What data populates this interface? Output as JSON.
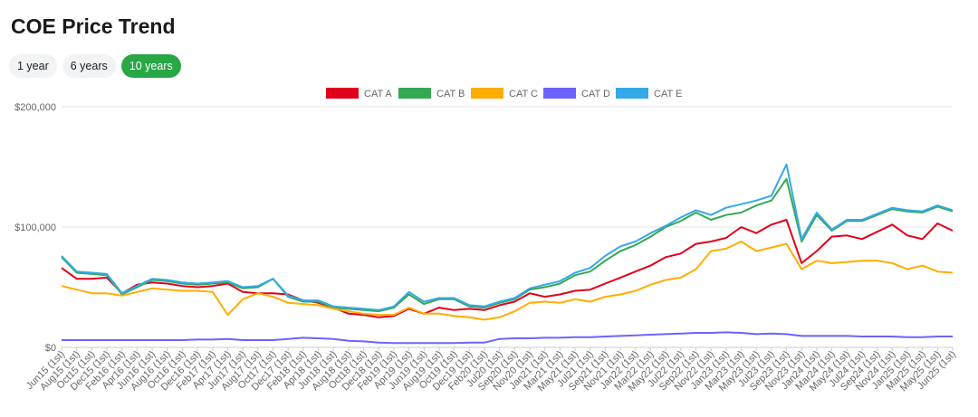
{
  "page": {
    "title": "COE Price Trend"
  },
  "range_buttons": [
    {
      "label": "1 year",
      "active": false
    },
    {
      "label": "6 years",
      "active": false
    },
    {
      "label": "10 years",
      "active": true
    }
  ],
  "chart_data": {
    "type": "line",
    "title": "",
    "xlabel": "",
    "ylabel": "",
    "ylim": [
      0,
      200000
    ],
    "y_ticks": [
      "$0",
      "$100,000",
      "$200,000"
    ],
    "grid": true,
    "legend_position": "top",
    "x": [
      "Jun15 (1st)",
      "Aug15 (1st)",
      "Oct15 (1st)",
      "Dec15 (1st)",
      "Feb16 (1st)",
      "Apr16 (1st)",
      "Jun16 (1st)",
      "Aug16 (1st)",
      "Oct16 (1st)",
      "Dec16 (1st)",
      "Feb17 (1st)",
      "Apr17 (1st)",
      "Jun17 (1st)",
      "Aug17 (1st)",
      "Oct17 (1st)",
      "Dec17 (1st)",
      "Feb18 (1st)",
      "Apr18 (1st)",
      "Jun18 (1st)",
      "Aug18 (1st)",
      "Oct18 (1st)",
      "Dec18 (1st)",
      "Feb19 (1st)",
      "Apr19 (1st)",
      "Jun19 (1st)",
      "Aug19 (1st)",
      "Oct19 (1st)",
      "Dec19 (1st)",
      "Feb20 (1st)",
      "Jul20 (1st)",
      "Sep20 (1st)",
      "Nov20 (1st)",
      "Jan21 (1st)",
      "Mar21 (1st)",
      "May21 (1st)",
      "Jul21 (1st)",
      "Sep21 (1st)",
      "Nov21 (1st)",
      "Jan22 (1st)",
      "Mar22 (1st)",
      "May22 (1st)",
      "Jul22 (1st)",
      "Sep22 (1st)",
      "Nov22 (1st)",
      "Jan23 (1st)",
      "Mar23 (1st)",
      "May23 (1st)",
      "Jul23 (1st)",
      "Sep23 (1st)",
      "Nov23 (1st)",
      "Jan24 (1st)",
      "Mar24 (1st)",
      "May24 (1st)",
      "Jul24 (1st)",
      "Sep24 (1st)",
      "Nov24 (1st)",
      "Jan25 (1st)",
      "Mar25 (1st)",
      "May25 (1st)",
      "Jun25 (1st)"
    ],
    "series": [
      {
        "name": "CAT A",
        "color": "#e0001b",
        "values": [
          66000,
          57000,
          57000,
          58000,
          45000,
          52000,
          54000,
          53000,
          51000,
          50000,
          51000,
          53000,
          46000,
          45000,
          45000,
          44000,
          39000,
          37000,
          33000,
          28000,
          27000,
          25000,
          26000,
          32000,
          28000,
          33000,
          31000,
          32000,
          31000,
          35000,
          38000,
          45000,
          42000,
          44000,
          47000,
          48000,
          53000,
          58000,
          63000,
          68000,
          75000,
          78000,
          86000,
          88000,
          91000,
          100000,
          95000,
          102000,
          106000,
          70000,
          80000,
          92000,
          93000,
          90000,
          96000,
          102000,
          93000,
          90000,
          103000,
          97000
        ]
      },
      {
        "name": "CAT B",
        "color": "#34a853",
        "values": [
          75000,
          62000,
          61000,
          60000,
          44000,
          50000,
          56000,
          55000,
          53000,
          52000,
          53000,
          54000,
          49000,
          50000,
          57000,
          42000,
          38000,
          38000,
          33000,
          32000,
          31000,
          30000,
          33000,
          44000,
          36000,
          40000,
          40000,
          34000,
          33000,
          37000,
          40000,
          48000,
          50000,
          53000,
          60000,
          63000,
          72000,
          80000,
          85000,
          92000,
          100000,
          105000,
          112000,
          106000,
          110000,
          112000,
          118000,
          122000,
          140000,
          88000,
          110000,
          97000,
          105000,
          105000,
          110000,
          115000,
          113000,
          112000,
          117000,
          113000
        ]
      },
      {
        "name": "CAT C",
        "color": "#ffad00",
        "values": [
          51000,
          48000,
          45000,
          45000,
          43000,
          46000,
          49000,
          48000,
          47000,
          47000,
          46000,
          27000,
          40000,
          45000,
          42000,
          37000,
          36000,
          35000,
          32000,
          30000,
          28000,
          27000,
          27000,
          33000,
          28000,
          28000,
          26000,
          25000,
          23000,
          25000,
          30000,
          37000,
          38000,
          37000,
          40000,
          38000,
          42000,
          44000,
          47000,
          52000,
          56000,
          58000,
          65000,
          80000,
          82000,
          88000,
          80000,
          83000,
          86000,
          65000,
          72000,
          70000,
          71000,
          72000,
          72000,
          70000,
          65000,
          68000,
          63000,
          62000
        ]
      },
      {
        "name": "CAT D",
        "color": "#6c63ff",
        "values": [
          6000,
          6000,
          6000,
          6000,
          6000,
          6000,
          6000,
          6000,
          6000,
          6500,
          6500,
          7000,
          6000,
          6000,
          6000,
          7000,
          8000,
          7500,
          7000,
          5500,
          5000,
          4000,
          3500,
          3500,
          3500,
          3500,
          3500,
          4000,
          4000,
          7000,
          7500,
          7500,
          8000,
          8000,
          8500,
          8500,
          9000,
          9500,
          10000,
          10500,
          11000,
          11500,
          12000,
          12000,
          12500,
          12000,
          11000,
          11500,
          11000,
          9500,
          9500,
          9500,
          9500,
          9000,
          9000,
          9000,
          8500,
          8500,
          9000,
          9000
        ]
      },
      {
        "name": "CAT E",
        "color": "#33a9e7",
        "values": [
          76000,
          63000,
          62000,
          61000,
          45000,
          51000,
          57000,
          56000,
          54000,
          53000,
          54000,
          55000,
          50000,
          51000,
          57000,
          43000,
          39000,
          39000,
          34000,
          33000,
          32000,
          31000,
          34000,
          46000,
          38000,
          41000,
          41000,
          35000,
          34000,
          38000,
          41000,
          49000,
          52000,
          55000,
          62000,
          66000,
          76000,
          84000,
          88000,
          95000,
          101000,
          108000,
          114000,
          110000,
          116000,
          119000,
          122000,
          126000,
          152000,
          90000,
          112000,
          98000,
          106000,
          106000,
          111000,
          116000,
          114000,
          113000,
          118000,
          114000
        ]
      }
    ]
  }
}
